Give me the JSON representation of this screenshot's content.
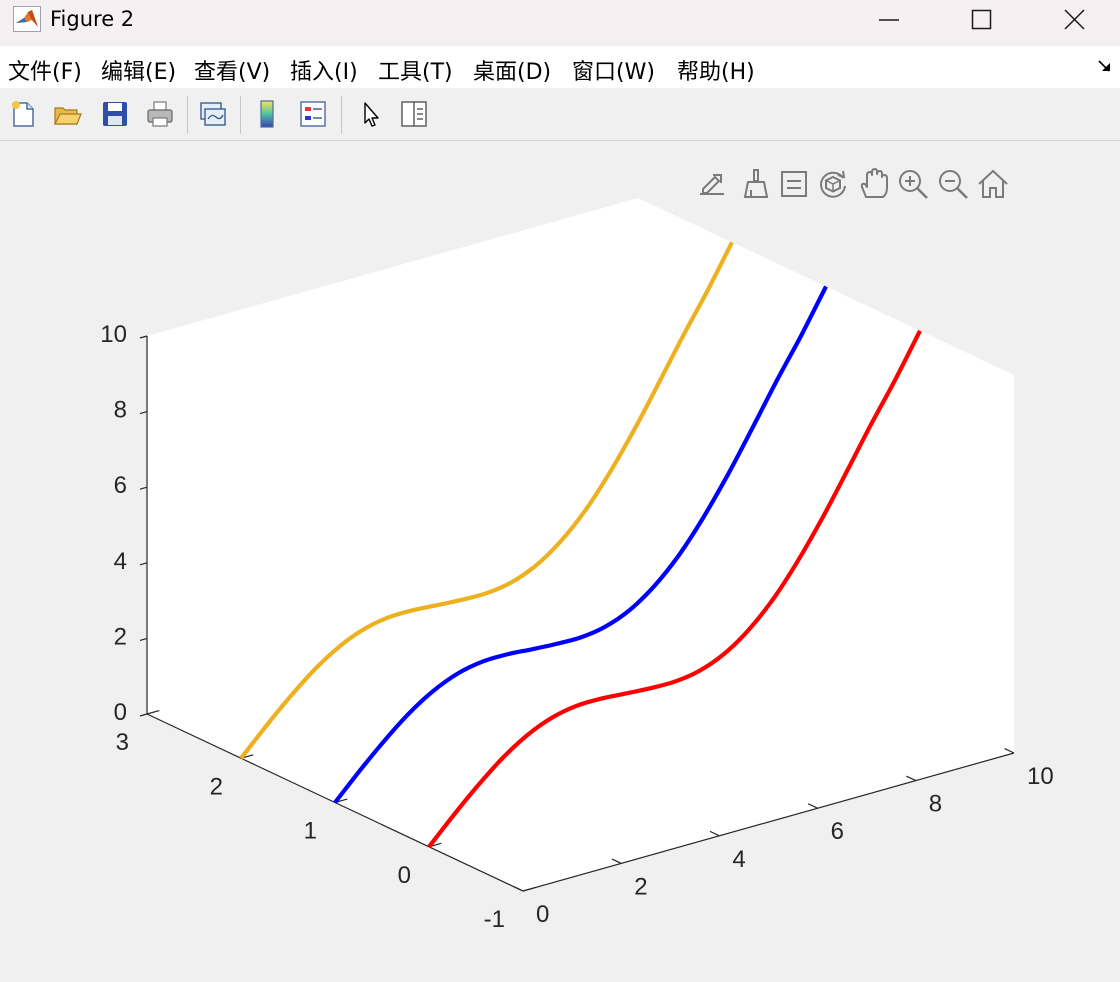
{
  "window": {
    "title": "Figure 2",
    "controls": [
      "minimize",
      "maximize",
      "close"
    ]
  },
  "menubar": {
    "items": [
      "文件(F)",
      "编辑(E)",
      "查看(V)",
      "插入(I)",
      "工具(T)",
      "桌面(D)",
      "窗口(W)",
      "帮助(H)"
    ]
  },
  "toolbar": {
    "buttons": [
      "new-figure",
      "open-file",
      "save-figure",
      "print-figure",
      "link-plot",
      "insert-colorbar",
      "insert-legend",
      "edit-plot",
      "property-inspector"
    ]
  },
  "axes_toolbar": {
    "buttons": [
      "export",
      "brush",
      "data-tips",
      "rotate-3d",
      "pan",
      "zoom-in",
      "zoom-out",
      "restore-view"
    ]
  },
  "chart_data": {
    "type": "line",
    "projection": "3d",
    "title": "",
    "xlabel": "",
    "ylabel": "",
    "zlabel": "",
    "xlim": [
      0,
      10
    ],
    "ylim": [
      -1,
      3
    ],
    "zlim": [
      0,
      10
    ],
    "xticks": [
      "0",
      "2",
      "4",
      "6",
      "8",
      "10"
    ],
    "yticks": [
      "-1",
      "0",
      "1",
      "2",
      "3"
    ],
    "zticks": [
      "0",
      "2",
      "4",
      "6",
      "8",
      "10"
    ],
    "grid": false,
    "series": [
      {
        "color": "#ff0000",
        "x": [
          0,
          0.5,
          1,
          1.5,
          2,
          2.5,
          3,
          3.5,
          4,
          4.5,
          5,
          5.5,
          6,
          6.5,
          7,
          7.5,
          8,
          8.5,
          9,
          9.5,
          10
        ],
        "y": [
          0,
          0,
          0,
          0,
          0,
          0,
          0,
          0,
          0,
          0,
          0,
          0,
          0,
          0,
          0,
          0,
          0,
          0,
          0,
          0,
          0
        ],
        "z": [
          0,
          0.65,
          1.26,
          1.8,
          2.22,
          2.5,
          2.63,
          2.64,
          2.59,
          2.55,
          2.54,
          2.64,
          2.9,
          3.35,
          3.98,
          4.8,
          5.75,
          6.8,
          7.88,
          8.9,
          10
        ]
      },
      {
        "color": "#0000ff",
        "x": [
          0,
          0.5,
          1,
          1.5,
          2,
          2.5,
          3,
          3.5,
          4,
          4.5,
          5,
          5.5,
          6,
          6.5,
          7,
          7.5,
          8,
          8.5,
          9,
          9.5,
          10
        ],
        "y": [
          1,
          1,
          1,
          1,
          1,
          1,
          1,
          1,
          1,
          1,
          1,
          1,
          1,
          1,
          1,
          1,
          1,
          1,
          1,
          1,
          1
        ],
        "z": [
          0,
          0.65,
          1.26,
          1.8,
          2.22,
          2.5,
          2.63,
          2.64,
          2.59,
          2.55,
          2.54,
          2.64,
          2.9,
          3.35,
          3.98,
          4.8,
          5.75,
          6.8,
          7.88,
          8.9,
          10
        ]
      },
      {
        "color": "#edb120",
        "x": [
          0,
          0.5,
          1,
          1.5,
          2,
          2.5,
          3,
          3.5,
          4,
          4.5,
          5,
          5.5,
          6,
          6.5,
          7,
          7.5,
          8,
          8.5,
          9,
          9.5,
          10
        ],
        "y": [
          2,
          2,
          2,
          2,
          2,
          2,
          2,
          2,
          2,
          2,
          2,
          2,
          2,
          2,
          2,
          2,
          2,
          2,
          2,
          2,
          2
        ],
        "z": [
          0,
          0.65,
          1.26,
          1.8,
          2.22,
          2.5,
          2.63,
          2.64,
          2.59,
          2.55,
          2.54,
          2.64,
          2.9,
          3.35,
          3.98,
          4.8,
          5.75,
          6.8,
          7.88,
          8.9,
          10
        ]
      }
    ]
  }
}
